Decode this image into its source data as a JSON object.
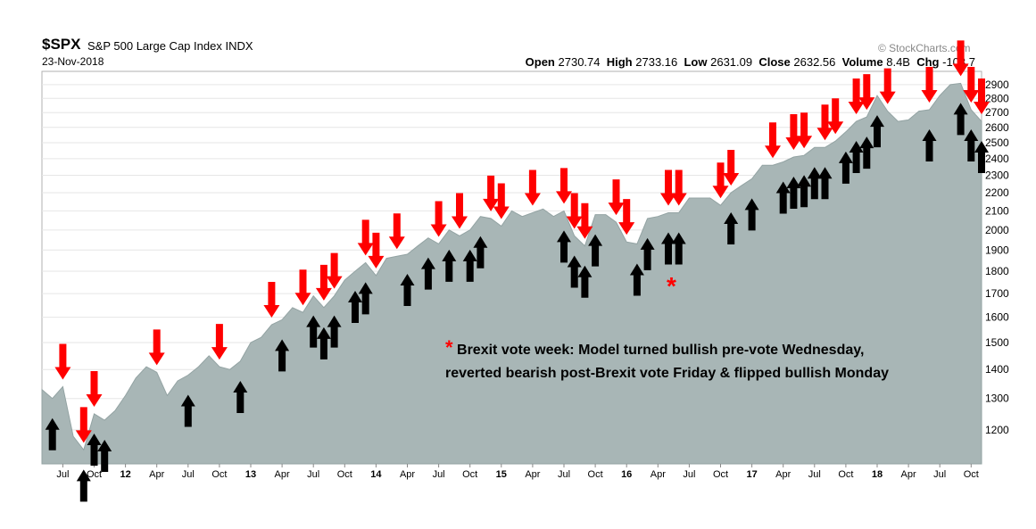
{
  "header": {
    "symbol": "$SPX",
    "name": "S&P 500 Large Cap Index",
    "exchange": "INDX",
    "date": "23-Nov-2018",
    "open_label": "Open",
    "open": "2730.74",
    "high_label": "High",
    "high": "2733.16",
    "low_label": "Low",
    "low": "2631.09",
    "close_label": "Close",
    "close": "2632.56",
    "volume_label": "Volume",
    "volume": "8.4B",
    "change_label": "Chg",
    "change": "-103.7"
  },
  "watermark": "© StockCharts.com",
  "annotation": {
    "star": "*",
    "line1": "Brexit vote week: Model turned bullish pre-vote Wednesday,",
    "line2": "reverted bearish post-Brexit vote Friday & flipped bullish Monday"
  },
  "colors": {
    "area_fill": "#a8b6b6",
    "area_line": "#93a3a3",
    "sell_arrow": "#ff0000",
    "buy_arrow": "#000000"
  },
  "chart_data": {
    "type": "area",
    "title": "$SPX S&P 500 Large Cap Index INDX",
    "y_scale": "log",
    "ylim": [
      1100,
      3000
    ],
    "y_ticks": [
      1200,
      1300,
      1400,
      1500,
      1600,
      1700,
      1800,
      1900,
      2000,
      2100,
      2200,
      2300,
      2400,
      2500,
      2600,
      2700,
      2800,
      2900
    ],
    "x_ticks": [
      "Jul",
      "Oct",
      "12",
      "Apr",
      "Jul",
      "Oct",
      "13",
      "Apr",
      "Jul",
      "Oct",
      "14",
      "Apr",
      "Jul",
      "Oct",
      "15",
      "Apr",
      "Jul",
      "Oct",
      "16",
      "Apr",
      "Jul",
      "Oct",
      "17",
      "Apr",
      "Jul",
      "Oct",
      "18",
      "Apr",
      "Jul",
      "Oct"
    ],
    "x_tick_dates": [
      "2011-07",
      "2011-10",
      "2012-01",
      "2012-04",
      "2012-07",
      "2012-10",
      "2013-01",
      "2013-04",
      "2013-07",
      "2013-10",
      "2014-01",
      "2014-04",
      "2014-07",
      "2014-10",
      "2015-01",
      "2015-04",
      "2015-07",
      "2015-10",
      "2016-01",
      "2016-04",
      "2016-07",
      "2016-10",
      "2017-01",
      "2017-04",
      "2017-07",
      "2017-10",
      "2018-01",
      "2018-04",
      "2018-07",
      "2018-10"
    ],
    "x_range": [
      "2011-05",
      "2018-11"
    ],
    "series": [
      {
        "x": [
          "2011-05",
          "2011-06",
          "2011-07",
          "2011-08",
          "2011-09",
          "2011-10",
          "2011-11",
          "2011-12",
          "2012-01",
          "2012-02",
          "2012-03",
          "2012-04",
          "2012-05",
          "2012-06",
          "2012-07",
          "2012-08",
          "2012-09",
          "2012-10",
          "2012-11",
          "2012-12",
          "2013-01",
          "2013-02",
          "2013-03",
          "2013-04",
          "2013-05",
          "2013-06",
          "2013-07",
          "2013-08",
          "2013-09",
          "2013-10",
          "2013-11",
          "2013-12",
          "2014-01",
          "2014-02",
          "2014-03",
          "2014-04",
          "2014-05",
          "2014-06",
          "2014-07",
          "2014-08",
          "2014-09",
          "2014-10",
          "2014-11",
          "2014-12",
          "2015-01",
          "2015-02",
          "2015-03",
          "2015-04",
          "2015-05",
          "2015-06",
          "2015-07",
          "2015-08",
          "2015-09",
          "2015-10",
          "2015-11",
          "2015-12",
          "2016-01",
          "2016-02",
          "2016-03",
          "2016-04",
          "2016-05",
          "2016-06",
          "2016-07",
          "2016-08",
          "2016-09",
          "2016-10",
          "2016-11",
          "2016-12",
          "2017-01",
          "2017-02",
          "2017-03",
          "2017-04",
          "2017-05",
          "2017-06",
          "2017-07",
          "2017-08",
          "2017-09",
          "2017-10",
          "2017-11",
          "2017-12",
          "2018-01",
          "2018-02",
          "2018-03",
          "2018-04",
          "2018-05",
          "2018-06",
          "2018-07",
          "2018-08",
          "2018-09",
          "2018-10",
          "2018-11"
        ],
        "y": [
          1330,
          1300,
          1340,
          1180,
          1140,
          1250,
          1230,
          1260,
          1310,
          1370,
          1410,
          1390,
          1310,
          1360,
          1380,
          1410,
          1450,
          1410,
          1400,
          1430,
          1500,
          1520,
          1570,
          1590,
          1640,
          1620,
          1690,
          1640,
          1690,
          1760,
          1800,
          1840,
          1780,
          1860,
          1870,
          1880,
          1920,
          1960,
          1930,
          2000,
          1970,
          2000,
          2070,
          2060,
          2020,
          2100,
          2070,
          2090,
          2110,
          2070,
          2100,
          1970,
          1920,
          2080,
          2080,
          2040,
          1940,
          1930,
          2060,
          2070,
          2090,
          2090,
          2170,
          2170,
          2170,
          2130,
          2200,
          2240,
          2280,
          2360,
          2360,
          2380,
          2410,
          2420,
          2470,
          2470,
          2510,
          2570,
          2640,
          2670,
          2820,
          2710,
          2640,
          2650,
          2710,
          2720,
          2820,
          2900,
          2910,
          2720,
          2640
        ]
      }
    ],
    "sell_signal_dates": [
      "2011-07",
      "2011-09",
      "2011-10",
      "2012-04",
      "2012-10",
      "2013-03",
      "2013-06",
      "2013-08",
      "2013-09",
      "2013-12",
      "2014-01",
      "2014-03",
      "2014-07",
      "2014-09",
      "2014-12",
      "2015-01",
      "2015-04",
      "2015-07",
      "2015-08",
      "2015-09",
      "2015-12",
      "2016-01",
      "2016-05",
      "2016-06",
      "2016-10",
      "2016-11",
      "2017-03",
      "2017-05",
      "2017-06",
      "2017-08",
      "2017-09",
      "2017-11",
      "2017-12",
      "2018-02",
      "2018-06",
      "2018-09",
      "2018-10",
      "2018-11"
    ],
    "buy_signal_dates": [
      "2011-06",
      "2011-09",
      "2011-10",
      "2011-11",
      "2012-07",
      "2012-12",
      "2013-04",
      "2013-07",
      "2013-08",
      "2013-09",
      "2013-11",
      "2013-12",
      "2014-04",
      "2014-06",
      "2014-08",
      "2014-10",
      "2014-11",
      "2015-07",
      "2015-08",
      "2015-09",
      "2015-10",
      "2016-02",
      "2016-03",
      "2016-05",
      "2016-06",
      "2016-11",
      "2017-01",
      "2017-04",
      "2017-05",
      "2017-06",
      "2017-07",
      "2017-08",
      "2017-10",
      "2017-11",
      "2017-12",
      "2018-01",
      "2018-06",
      "2018-09",
      "2018-10",
      "2018-11"
    ],
    "brexit_marker_date": "2016-06"
  }
}
